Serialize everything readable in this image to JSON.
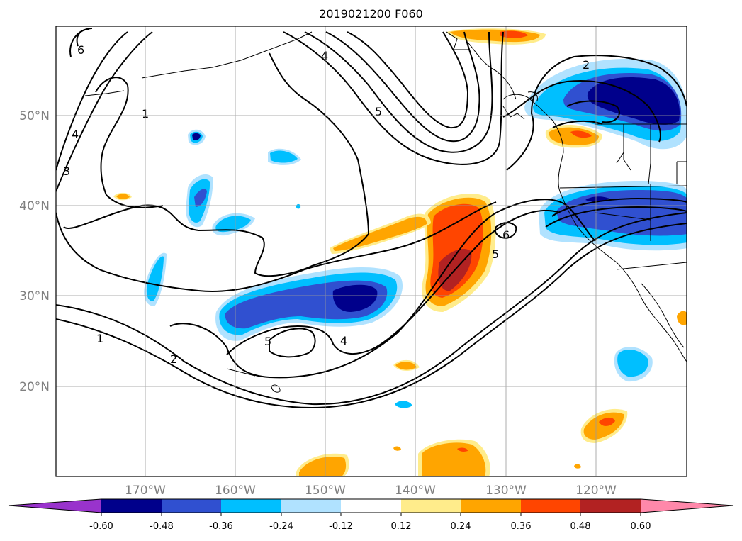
{
  "title": "2019021200 F060",
  "map": {
    "lat_labels": [
      "50°N",
      "40°N",
      "30°N",
      "20°N"
    ],
    "lon_labels": [
      "170°W",
      "160°W",
      "150°W",
      "140°W",
      "130°W",
      "120°W"
    ],
    "contour_labels": [
      "1",
      "1",
      "2",
      "2",
      "3",
      "4",
      "4",
      "4",
      "5",
      "5",
      "5",
      "6",
      "6"
    ]
  },
  "colorbar": {
    "ticks": [
      "-0.60",
      "-0.48",
      "-0.36",
      "-0.24",
      "-0.12",
      "0.12",
      "0.24",
      "0.36",
      "0.48",
      "0.60"
    ],
    "colors": [
      "#9933cc",
      "#00008b",
      "#3050d0",
      "#00bfff",
      "#b0e2ff",
      "#ffffff",
      "#ffec8b",
      "#ffa500",
      "#ff4500",
      "#b22222",
      "#ff88aa"
    ]
  }
}
